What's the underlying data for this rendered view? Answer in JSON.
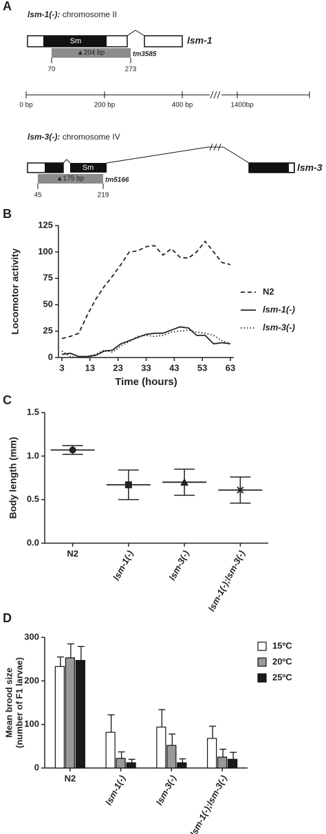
{
  "panel_labels": [
    "A",
    "B",
    "C",
    "D"
  ],
  "gene_diagram": {
    "gene1": {
      "allele": "lsm-1(-):",
      "chromosome": "chromosome II",
      "domain": "Sm",
      "name": "lsm-1",
      "deletion": "▲204 bp",
      "mutant": "tm3585",
      "start": "70",
      "end": "273"
    },
    "scale": [
      "0 bp",
      "200 bp",
      "400 bp",
      "1400bp"
    ],
    "gene2": {
      "allele": "lsm-3(-):",
      "chromosome": "chromosome IV",
      "domain": "Sm",
      "name": "lsm-3",
      "deletion": "▲175 bp",
      "mutant": "tm5166",
      "start": "45",
      "end": "219"
    }
  },
  "chart_data": [
    {
      "type": "line",
      "xlabel": "Time (hours)",
      "ylabel": "Locomotor activity",
      "x": [
        3,
        6,
        9,
        12,
        15,
        18,
        21,
        24,
        27,
        30,
        33,
        36,
        39,
        42,
        45,
        48,
        51,
        54,
        57,
        60,
        63
      ],
      "xlim": [
        3,
        63
      ],
      "xticks": [
        3,
        13,
        23,
        33,
        43,
        53,
        63
      ],
      "ylim": [
        0,
        125
      ],
      "yticks": [
        0,
        25,
        50,
        75,
        100,
        125
      ],
      "series": [
        {
          "name": "N2",
          "color": "#222222",
          "style": "dashed",
          "values": [
            18,
            20,
            23,
            40,
            55,
            67,
            77,
            88,
            100,
            101,
            105,
            106,
            97,
            103,
            95,
            94,
            100,
            110,
            100,
            90,
            88
          ]
        },
        {
          "name": "lsm-1(-)",
          "color": "#222222",
          "style": "solid",
          "values": [
            3,
            4,
            1,
            1,
            2,
            6,
            7,
            13,
            16,
            19,
            22,
            23,
            23,
            26,
            29,
            28,
            21,
            21,
            13,
            14,
            13
          ]
        },
        {
          "name": "lsm-3(-)",
          "color": "#222222",
          "style": "dotted",
          "values": [
            6,
            1,
            0,
            1,
            3,
            7,
            5,
            11,
            15,
            20,
            21,
            20,
            21,
            24,
            25,
            26,
            24,
            23,
            21,
            16,
            13
          ]
        }
      ]
    },
    {
      "type": "errorbar",
      "ylabel": "Body length (mm)",
      "categories": [
        "N2",
        "lsm-1(-)",
        "lsm-3(-)",
        "lsm-1(-);lsm-3(-)"
      ],
      "values": [
        1.07,
        0.67,
        0.7,
        0.61
      ],
      "errors": [
        0.05,
        0.17,
        0.15,
        0.15
      ],
      "markers": [
        "circle",
        "square",
        "triangle",
        "star"
      ],
      "color": "#222222",
      "ylim": [
        0,
        1.5
      ],
      "yticks": [
        {
          "value": 0,
          "label": "0.0"
        },
        0.5,
        {
          "value": 1,
          "label": "1.0"
        },
        1.5
      ]
    },
    {
      "type": "bar",
      "ylabel": [
        "Mean brood size",
        "(number of F1 larvae)"
      ],
      "categories": [
        "N2",
        "lsm-1(-)",
        "lsm-3(-)",
        "lsm-1(-);lsm-3(-)"
      ],
      "ylim": [
        0,
        300
      ],
      "yticks": [
        0,
        100,
        200,
        300
      ],
      "series": [
        {
          "name": "15ºC",
          "color": "#ffffff",
          "values": [
            233,
            82,
            94,
            68
          ],
          "errors": [
            22,
            40,
            40,
            28
          ]
        },
        {
          "name": "20ºC",
          "color": "#999999",
          "values": [
            253,
            22,
            52,
            25
          ],
          "errors": [
            32,
            15,
            26,
            18
          ]
        },
        {
          "name": "25ºC",
          "color": "#1a1a1a",
          "values": [
            247,
            12,
            12,
            20
          ],
          "errors": [
            32,
            8,
            9,
            16
          ]
        }
      ]
    }
  ]
}
